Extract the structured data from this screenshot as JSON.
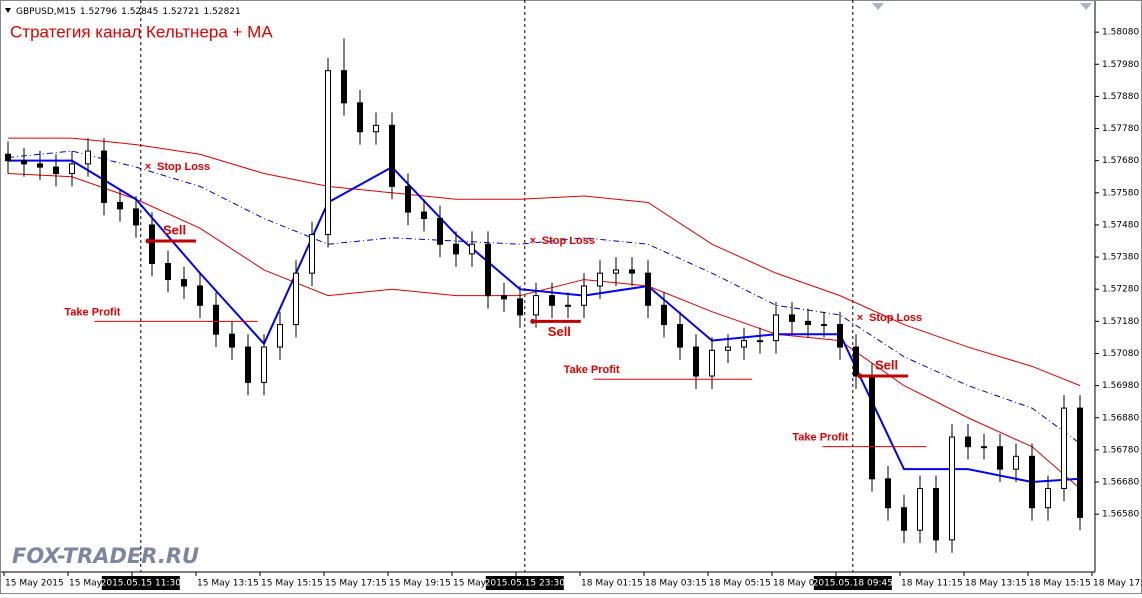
{
  "chart_data": {
    "type": "candlestick",
    "symbol": "GBPUSD,M15",
    "header_values": [
      1.52796,
      1.52845,
      1.52721,
      1.52821
    ],
    "title": "Стратегия канал Кельтнера + MA",
    "watermark": "FOX-TRADER.RU",
    "open": [
      1.577,
      1.5768,
      1.5767,
      1.5766,
      1.5764,
      1.5767,
      1.5771,
      1.5755,
      1.5753,
      1.5748,
      1.5736,
      1.5731,
      1.5729,
      1.5723,
      1.5714,
      1.571,
      1.5699,
      1.571,
      1.5717,
      1.5733,
      1.5745,
      1.5796,
      1.5786,
      1.5777,
      1.5779,
      1.576,
      1.5752,
      1.575,
      1.5742,
      1.5739,
      1.5742,
      1.5726,
      1.5725,
      1.572,
      1.5726,
      1.5723,
      1.5723,
      1.5729,
      1.5733,
      1.5734,
      1.5733,
      1.5723,
      1.5717,
      1.571,
      1.5701,
      1.5709,
      1.571,
      1.5712,
      1.5712,
      1.572,
      1.5718,
      1.5717,
      1.5717,
      1.571,
      1.5701,
      1.5669,
      1.566,
      1.5653,
      1.5666,
      1.565,
      1.5682,
      1.5679,
      1.5679,
      1.5672,
      1.5676,
      1.566,
      1.5666,
      1.5691
    ],
    "high": [
      1.5774,
      1.5772,
      1.5771,
      1.577,
      1.5771,
      1.5775,
      1.5775,
      1.5759,
      1.5757,
      1.5752,
      1.574,
      1.5735,
      1.5733,
      1.5727,
      1.5718,
      1.5714,
      1.5714,
      1.5721,
      1.5737,
      1.5749,
      1.58,
      1.5806,
      1.579,
      1.5783,
      1.5783,
      1.5764,
      1.5756,
      1.5754,
      1.5746,
      1.5746,
      1.5746,
      1.573,
      1.5729,
      1.573,
      1.573,
      1.5727,
      1.5733,
      1.5737,
      1.5738,
      1.5738,
      1.5737,
      1.5727,
      1.5721,
      1.5714,
      1.5713,
      1.5714,
      1.5716,
      1.5716,
      1.5724,
      1.5724,
      1.5722,
      1.5721,
      1.5721,
      1.5714,
      1.5705,
      1.5673,
      1.5664,
      1.567,
      1.567,
      1.5686,
      1.5686,
      1.5683,
      1.5683,
      1.568,
      1.568,
      1.567,
      1.5695,
      1.5695
    ],
    "low": [
      1.5764,
      1.5763,
      1.5762,
      1.576,
      1.576,
      1.5763,
      1.5751,
      1.5749,
      1.5744,
      1.5732,
      1.5727,
      1.5725,
      1.5719,
      1.571,
      1.5706,
      1.5695,
      1.5695,
      1.5706,
      1.5713,
      1.5729,
      1.5741,
      1.5782,
      1.5773,
      1.5773,
      1.5756,
      1.5748,
      1.5746,
      1.5738,
      1.5735,
      1.5735,
      1.5722,
      1.5721,
      1.5716,
      1.5716,
      1.5719,
      1.5719,
      1.5719,
      1.5725,
      1.5729,
      1.5729,
      1.5719,
      1.5713,
      1.5706,
      1.5697,
      1.5697,
      1.5705,
      1.5706,
      1.5708,
      1.5708,
      1.5714,
      1.5713,
      1.5713,
      1.5706,
      1.5697,
      1.5665,
      1.5656,
      1.5649,
      1.5649,
      1.5646,
      1.5646,
      1.5675,
      1.5675,
      1.5668,
      1.5668,
      1.5656,
      1.5656,
      1.5662,
      1.5653
    ],
    "close": [
      1.5768,
      1.5767,
      1.5766,
      1.5764,
      1.5767,
      1.5771,
      1.5755,
      1.5753,
      1.5748,
      1.5736,
      1.5731,
      1.5729,
      1.5723,
      1.5714,
      1.571,
      1.5699,
      1.571,
      1.5717,
      1.5733,
      1.5745,
      1.5796,
      1.5786,
      1.5777,
      1.5779,
      1.576,
      1.5752,
      1.575,
      1.5742,
      1.5739,
      1.5742,
      1.5726,
      1.5725,
      1.572,
      1.5726,
      1.5723,
      1.5723,
      1.5729,
      1.5733,
      1.5734,
      1.5733,
      1.5723,
      1.5717,
      1.571,
      1.5701,
      1.5709,
      1.571,
      1.5712,
      1.5712,
      1.572,
      1.5718,
      1.5717,
      1.5717,
      1.571,
      1.5701,
      1.5669,
      1.566,
      1.5653,
      1.5666,
      1.565,
      1.5682,
      1.5679,
      1.5679,
      1.5672,
      1.5676,
      1.566,
      1.5666,
      1.5691,
      1.5657
    ],
    "line_x": [
      0,
      4,
      8,
      12,
      16,
      20,
      24,
      28,
      32,
      36,
      40,
      44,
      48,
      52,
      56,
      60,
      64,
      67
    ],
    "series": [
      {
        "color": "#e00000",
        "style": "solid",
        "width": 1,
        "values": [
          1.5775,
          1.5775,
          1.5773,
          1.577,
          1.5764,
          1.576,
          1.5758,
          1.5756,
          1.5756,
          1.5757,
          1.5755,
          1.5742,
          1.5733,
          1.5726,
          1.5717,
          1.571,
          1.5704,
          1.5698
        ]
      },
      {
        "color": "#0000c8",
        "style": "dashed",
        "width": 1,
        "values": [
          1.5769,
          1.5771,
          1.5766,
          1.576,
          1.575,
          1.5742,
          1.5744,
          1.5743,
          1.5742,
          1.5744,
          1.5742,
          1.5733,
          1.5723,
          1.572,
          1.5707,
          1.5698,
          1.5691,
          1.568
        ]
      },
      {
        "color": "#e00000",
        "style": "solid",
        "width": 1,
        "values": [
          1.5764,
          1.5763,
          1.5756,
          1.5747,
          1.5734,
          1.5726,
          1.5728,
          1.5726,
          1.5726,
          1.5731,
          1.5729,
          1.5721,
          1.5714,
          1.5712,
          1.5698,
          1.5688,
          1.5679,
          1.5666
        ]
      },
      {
        "color": "#0000ff",
        "style": "solid",
        "width": 2,
        "values": [
          1.5768,
          1.5768,
          1.5756,
          1.5733,
          1.5711,
          1.5755,
          1.5766,
          1.5745,
          1.5728,
          1.5726,
          1.5729,
          1.5712,
          1.5714,
          1.5714,
          1.5672,
          1.5672,
          1.5668,
          1.5669
        ]
      }
    ],
    "ylim": [
      1.564,
      1.5818
    ],
    "yticks": [
      {
        "value": 1.5808,
        "label": "1.58080"
      },
      {
        "value": 1.5798,
        "label": "1.57980"
      },
      {
        "value": 1.5788,
        "label": "1.57880"
      },
      {
        "value": 1.5778,
        "label": "1.57780"
      },
      {
        "value": 1.5768,
        "label": "1.57680"
      },
      {
        "value": 1.5758,
        "label": "1.57580"
      },
      {
        "value": 1.5748,
        "label": "1.57480"
      },
      {
        "value": 1.5738,
        "label": "1.57380"
      },
      {
        "value": 1.5728,
        "label": "1.57280"
      },
      {
        "value": 1.5718,
        "label": "1.57180"
      },
      {
        "value": 1.5708,
        "label": "1.57080"
      },
      {
        "value": 1.5698,
        "label": "1.56980"
      },
      {
        "value": 1.5688,
        "label": "1.56880"
      },
      {
        "value": 1.5678,
        "label": "1.56780"
      },
      {
        "value": 1.5668,
        "label": "1.56680"
      },
      {
        "value": 1.5658,
        "label": "1.56580"
      }
    ],
    "categories": [
      "15 May 2015",
      "15 May",
      null,
      "15 May 13:15",
      "15 May 15:15",
      "15 May 17:15",
      "15 May 19:15",
      "15 May",
      null,
      "18 May 01:15",
      "18 May 03:15",
      "18 May 05:15",
      "18 May 0",
      null,
      "18 May 11:15",
      "18 May 13:15",
      "18 May 15:15",
      "18 May 17:"
    ],
    "markers": [
      {
        "x": 8.3,
        "label": "2015.05.15 11:30"
      },
      {
        "x": 32.3,
        "label": "2015.05.15 23:30"
      },
      {
        "x": 52.8,
        "label": "2015.05.18 09:45"
      }
    ],
    "sell_label": "Sell",
    "stop_loss_label": "Stop Loss",
    "take_profit_label": "Take Profit",
    "trades": [
      {
        "index": 8.75,
        "sell": 1.5743,
        "stop_loss": 1.5766,
        "take_profit": 1.5718,
        "take_profit_span": [
          5.4,
          15.6
        ],
        "sell_label_side": "above"
      },
      {
        "index": 32.8,
        "sell": 1.5718,
        "stop_loss": 1.5743,
        "take_profit": 1.57,
        "take_profit_span": [
          36.6,
          46.5
        ],
        "sell_label_side": "below"
      },
      {
        "index": 53.25,
        "sell": 1.5701,
        "stop_loss": 1.5719,
        "take_profit": 1.5679,
        "take_profit_span": [
          50.9,
          57.4
        ],
        "sell_label_side": "above"
      }
    ]
  }
}
